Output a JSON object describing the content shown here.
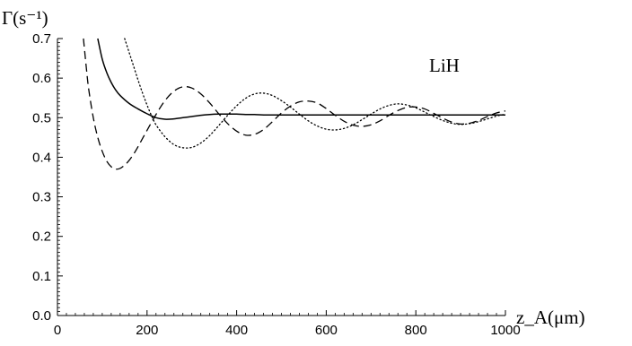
{
  "chart_data": {
    "type": "line",
    "title": "",
    "ylabel": "Γ(s⁻¹)",
    "xlabel": "z_A(μm)",
    "annotation": "LiH",
    "xlim": [
      0,
      1000
    ],
    "ylim": [
      0,
      0.7
    ],
    "xticks": [
      0,
      200,
      400,
      600,
      800,
      1000
    ],
    "yticks": [
      0.0,
      0.1,
      0.2,
      0.3,
      0.4,
      0.5,
      0.6,
      0.7
    ],
    "xtick_labels": [
      "0",
      "200",
      "400",
      "600",
      "800",
      "1000"
    ],
    "ytick_labels": [
      "0.0",
      "0.1",
      "0.2",
      "0.3",
      "0.4",
      "0.5",
      "0.6",
      "0.7"
    ],
    "grid": false,
    "legend": "none",
    "series": [
      {
        "style": "solid",
        "color": "#000000",
        "x": [
          90,
          100,
          110,
          120,
          130,
          140,
          160,
          180,
          200,
          220,
          240,
          260,
          280,
          300,
          320,
          340,
          360,
          380,
          400,
          420,
          440,
          460,
          480,
          500,
          520,
          540,
          560,
          580,
          600,
          650,
          700,
          750,
          800,
          850,
          900,
          950,
          1000
        ],
        "y": [
          0.7,
          0.648,
          0.614,
          0.589,
          0.57,
          0.556,
          0.536,
          0.522,
          0.51,
          0.5,
          0.496,
          0.497,
          0.5,
          0.503,
          0.506,
          0.508,
          0.509,
          0.509,
          0.509,
          0.508,
          0.508,
          0.507,
          0.507,
          0.507,
          0.507,
          0.507,
          0.507,
          0.507,
          0.507,
          0.507,
          0.507,
          0.507,
          0.507,
          0.507,
          0.507,
          0.507,
          0.507
        ]
      },
      {
        "style": "dashed",
        "color": "#000000",
        "x": [
          58,
          65,
          70,
          80,
          90,
          100,
          110,
          120,
          130,
          140,
          150,
          160,
          170,
          180,
          200,
          220,
          240,
          260,
          280,
          300,
          320,
          340,
          360,
          380,
          400,
          420,
          440,
          460,
          480,
          500,
          520,
          540,
          560,
          580,
          600,
          620,
          640,
          660,
          680,
          700,
          720,
          740,
          760,
          780,
          800,
          820,
          840,
          860,
          880,
          900,
          920,
          940,
          960,
          980,
          1000
        ],
        "y": [
          0.7,
          0.62,
          0.57,
          0.5,
          0.45,
          0.415,
          0.39,
          0.376,
          0.37,
          0.372,
          0.38,
          0.392,
          0.408,
          0.427,
          0.468,
          0.508,
          0.543,
          0.567,
          0.578,
          0.575,
          0.56,
          0.537,
          0.51,
          0.485,
          0.466,
          0.456,
          0.458,
          0.47,
          0.49,
          0.512,
          0.529,
          0.54,
          0.542,
          0.537,
          0.523,
          0.506,
          0.491,
          0.481,
          0.478,
          0.482,
          0.492,
          0.506,
          0.518,
          0.526,
          0.527,
          0.522,
          0.511,
          0.499,
          0.489,
          0.484,
          0.486,
          0.493,
          0.503,
          0.512,
          0.517
        ]
      },
      {
        "style": "dotted",
        "color": "#000000",
        "x": [
          150,
          160,
          170,
          180,
          190,
          200,
          210,
          220,
          240,
          260,
          280,
          300,
          320,
          340,
          360,
          380,
          400,
          420,
          440,
          460,
          480,
          500,
          520,
          540,
          560,
          580,
          600,
          620,
          640,
          660,
          680,
          700,
          720,
          740,
          760,
          780,
          800,
          820,
          840,
          860,
          880,
          900,
          920,
          940,
          960,
          980,
          1000
        ],
        "y": [
          0.7,
          0.665,
          0.63,
          0.595,
          0.562,
          0.532,
          0.505,
          0.482,
          0.452,
          0.432,
          0.424,
          0.425,
          0.436,
          0.455,
          0.48,
          0.506,
          0.53,
          0.549,
          0.56,
          0.562,
          0.556,
          0.543,
          0.527,
          0.509,
          0.492,
          0.479,
          0.471,
          0.469,
          0.473,
          0.482,
          0.495,
          0.509,
          0.522,
          0.531,
          0.535,
          0.532,
          0.525,
          0.514,
          0.503,
          0.493,
          0.486,
          0.483,
          0.485,
          0.49,
          0.497,
          0.504,
          0.509
        ]
      }
    ]
  }
}
